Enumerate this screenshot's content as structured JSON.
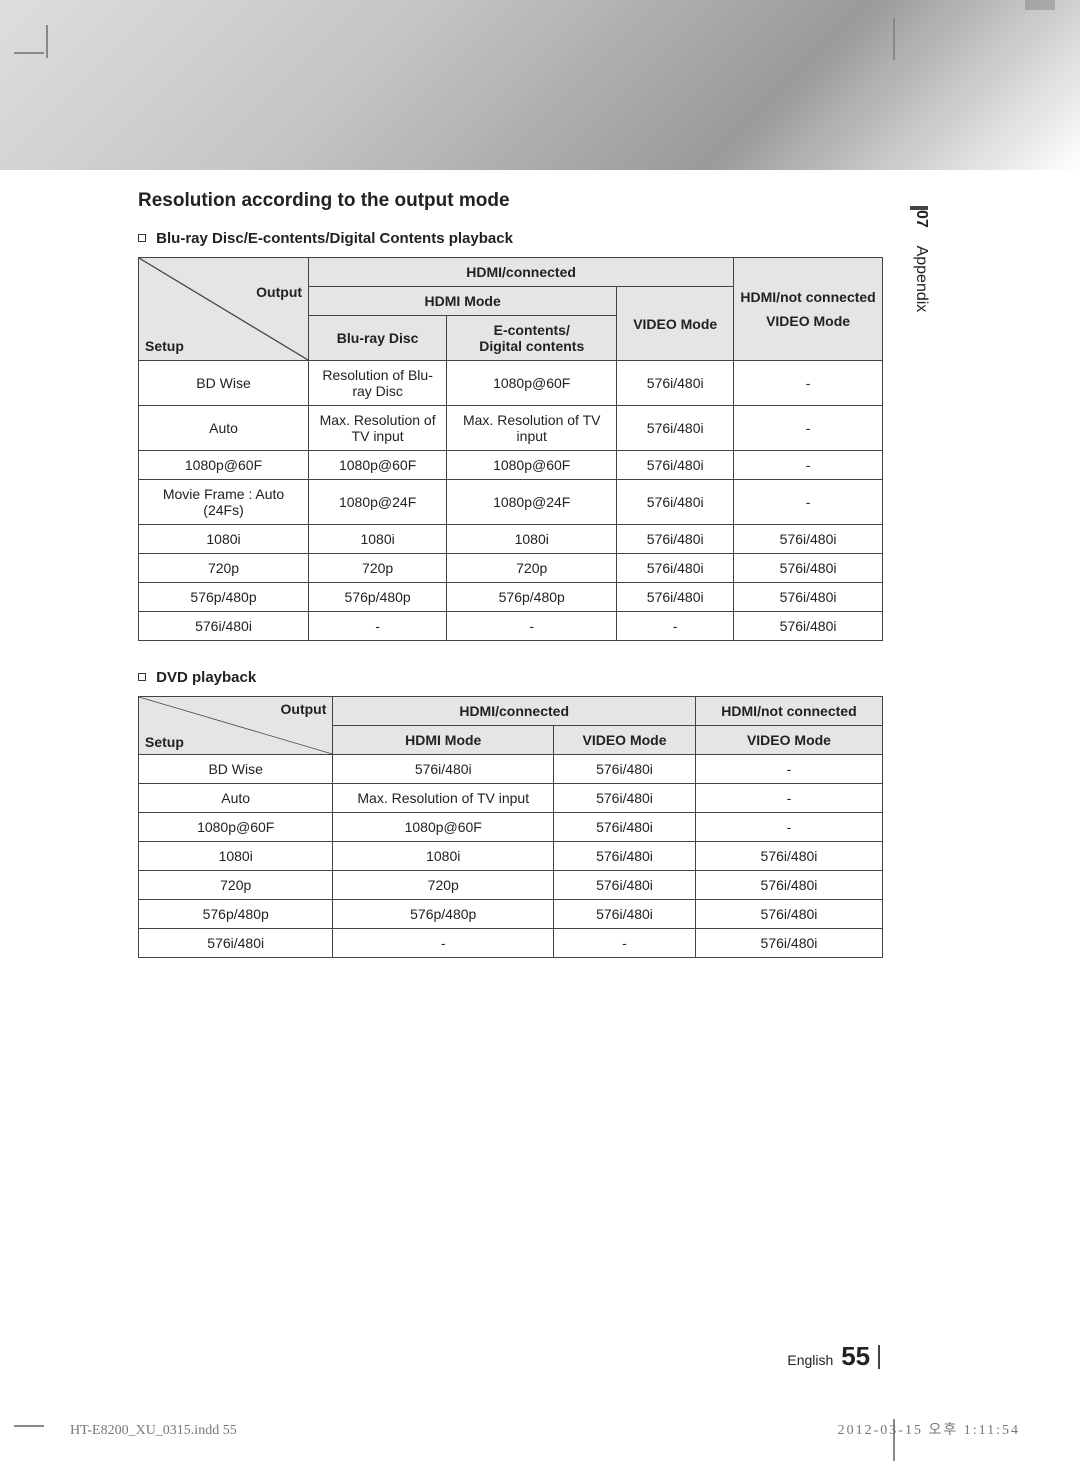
{
  "side_tab": {
    "num": "07",
    "label": "Appendix"
  },
  "section_title": "Resolution according to the output mode",
  "sub1": "Blu-ray Disc/E-contents/Digital Contents playback",
  "sub2": "DVD playback",
  "t1": {
    "diag_output": "Output",
    "diag_setup": "Setup",
    "h_hdmi_conn": "HDMI/connected",
    "h_hdmi_not": "HDMI/not connected",
    "h_hdmi_mode": "HDMI Mode",
    "h_video_mode1": "VIDEO Mode",
    "h_video_mode2": "VIDEO Mode",
    "h_bluray": "Blu-ray Disc",
    "h_econtents": "E-contents/\nDigital contents",
    "rows": [
      [
        "BD Wise",
        "Resolution of Blu-ray Disc",
        "1080p@60F",
        "576i/480i",
        "-"
      ],
      [
        "Auto",
        "Max. Resolution of TV input",
        "Max. Resolution of TV input",
        "576i/480i",
        "-"
      ],
      [
        "1080p@60F",
        "1080p@60F",
        "1080p@60F",
        "576i/480i",
        "-"
      ],
      [
        "Movie Frame : Auto (24Fs)",
        "1080p@24F",
        "1080p@24F",
        "576i/480i",
        "-"
      ],
      [
        "1080i",
        "1080i",
        "1080i",
        "576i/480i",
        "576i/480i"
      ],
      [
        "720p",
        "720p",
        "720p",
        "576i/480i",
        "576i/480i"
      ],
      [
        "576p/480p",
        "576p/480p",
        "576p/480p",
        "576i/480i",
        "576i/480i"
      ],
      [
        "576i/480i",
        "-",
        "-",
        "-",
        "576i/480i"
      ]
    ]
  },
  "t2": {
    "diag_output": "Output",
    "diag_setup": "Setup",
    "h_hdmi_conn": "HDMI/connected",
    "h_hdmi_not": "HDMI/not connected",
    "h_hdmi_mode": "HDMI Mode",
    "h_video_mode1": "VIDEO Mode",
    "h_video_mode2": "VIDEO Mode",
    "rows": [
      [
        "BD Wise",
        "576i/480i",
        "576i/480i",
        "-"
      ],
      [
        "Auto",
        "Max. Resolution of TV input",
        "576i/480i",
        "-"
      ],
      [
        "1080p@60F",
        "1080p@60F",
        "576i/480i",
        "-"
      ],
      [
        "1080i",
        "1080i",
        "576i/480i",
        "576i/480i"
      ],
      [
        "720p",
        "720p",
        "576i/480i",
        "576i/480i"
      ],
      [
        "576p/480p",
        "576p/480p",
        "576i/480i",
        "576i/480i"
      ],
      [
        "576i/480i",
        "-",
        "-",
        "576i/480i"
      ]
    ]
  },
  "footer": {
    "lang": "English",
    "page": "55"
  },
  "indd": "HT-E8200_XU_0315.indd   55",
  "timestamp": "2012-03-15   오후 1:11:54"
}
